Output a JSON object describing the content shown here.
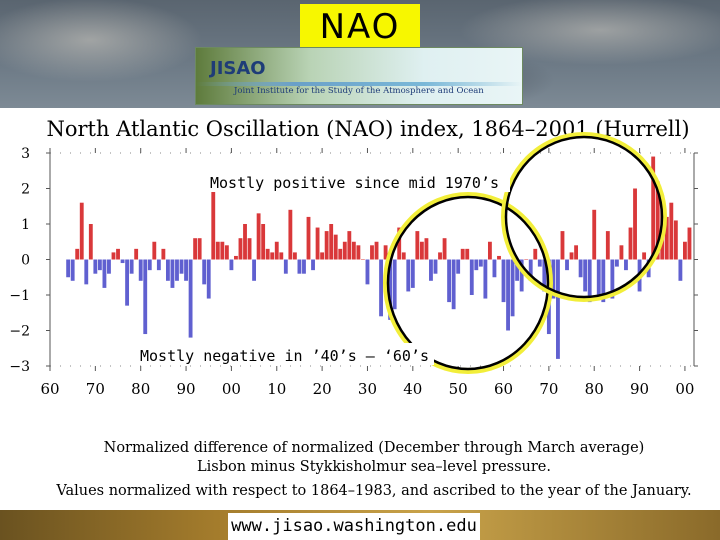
{
  "slide": {
    "title": "NAO",
    "logo_name": "JISAO",
    "logo_subtitle": "Joint Institute for the Study of the Atmosphere and Ocean",
    "url": "www.jisao.washington.edu"
  },
  "annotations": {
    "positive": "Mostly positive since mid 1970’s",
    "negative": "Mostly negative in ’40’s – ‘60’s"
  },
  "caption": [
    "Normalized difference of normalized (December through March average)",
    "Lisbon minus Stykkisholmur sea–level pressure.",
    "Values normalized with respect to 1864–1983, and ascribed to the year of the January."
  ],
  "colors": {
    "positive": "#d9383a",
    "negative": "#6060d0",
    "highlight": "#f2ee3a"
  },
  "chart_data": {
    "type": "bar",
    "title": "North Atlantic Oscillation (NAO) index, 1864–2001 (Hurrell)",
    "xlabel": "",
    "ylabel": "",
    "ylim": [
      -3,
      3
    ],
    "xlim": [
      1860,
      2002
    ],
    "ytick_labels": [
      "3",
      "2",
      "1",
      "0",
      "−1",
      "−2",
      "−3"
    ],
    "ytick_values": [
      3,
      2,
      1,
      0,
      -1,
      -2,
      -3
    ],
    "xtick_labels": [
      "60",
      "70",
      "80",
      "90",
      "00",
      "10",
      "20",
      "30",
      "40",
      "50",
      "60",
      "70",
      "80",
      "90",
      "00"
    ],
    "xtick_values": [
      1860,
      1870,
      1880,
      1890,
      1900,
      1910,
      1920,
      1930,
      1940,
      1950,
      1960,
      1970,
      1980,
      1990,
      2000
    ],
    "start_year": 1864,
    "values": [
      -0.5,
      -0.6,
      0.3,
      1.6,
      -0.7,
      1.0,
      -0.4,
      -0.3,
      -0.8,
      -0.4,
      0.2,
      0.3,
      -0.1,
      -1.3,
      -0.4,
      0.3,
      -0.6,
      -2.1,
      -0.3,
      0.5,
      -0.3,
      0.3,
      -0.6,
      -0.8,
      -0.6,
      -0.4,
      -0.6,
      -2.2,
      0.6,
      0.6,
      -0.7,
      -1.1,
      2.1,
      0.5,
      0.5,
      0.4,
      -0.3,
      0.1,
      0.6,
      1.0,
      0.6,
      -0.6,
      1.3,
      1.0,
      0.3,
      0.2,
      0.5,
      0.2,
      -0.4,
      1.4,
      0.2,
      -0.4,
      -0.4,
      1.2,
      -0.3,
      0.9,
      0.2,
      0.8,
      1.0,
      0.7,
      0.3,
      0.5,
      0.8,
      0.5,
      0.4,
      0.0,
      -0.7,
      0.4,
      0.5,
      -1.6,
      0.4,
      -1.7,
      -1.4,
      0.9,
      0.2,
      -0.9,
      -0.8,
      0.8,
      0.5,
      0.6,
      -0.6,
      -0.4,
      0.2,
      0.6,
      -1.2,
      -1.4,
      -0.4,
      0.3,
      0.3,
      -1.0,
      -0.3,
      -0.2,
      -1.1,
      0.5,
      -0.5,
      0.1,
      -1.2,
      -2.0,
      -1.6,
      -0.6,
      -0.9,
      0.0,
      -0.6,
      0.3,
      -0.2,
      -0.9,
      -2.1,
      -1.1,
      -2.8,
      0.8,
      -0.3,
      0.2,
      0.4,
      -0.5,
      -0.9,
      -1.2,
      1.4,
      -1.0,
      -1.2,
      0.8,
      -1.1,
      -0.2,
      0.4,
      -0.3,
      0.9,
      2.0,
      -0.9,
      0.2,
      -0.5,
      2.9,
      2.2,
      1.8,
      1.2,
      1.6,
      1.1,
      -0.6,
      0.5,
      0.9
    ]
  }
}
